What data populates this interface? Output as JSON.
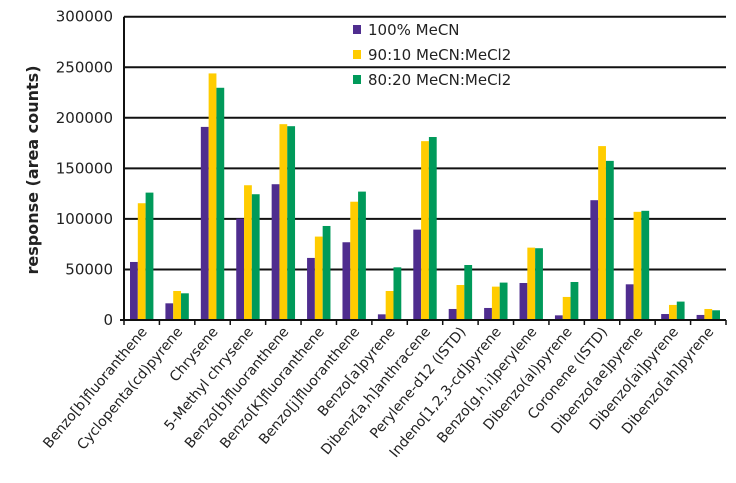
{
  "chart_data": {
    "type": "bar",
    "title": "",
    "xlabel": "",
    "ylabel": "response (area counts)",
    "ylim": [
      0,
      300000
    ],
    "yticks": [
      0,
      50000,
      100000,
      150000,
      200000,
      250000,
      300000
    ],
    "grid": "horizontal",
    "legend_position": "top-center",
    "categories": [
      "Benzo[b]fluoranthene",
      "Cyclopenta(cd)pyrene",
      "Chrysene",
      "5-Methyl chrysene",
      "Benzo[b]fluoranthene",
      "Benzo[K]fluoranthene",
      "Benzo[j]fluoranthene",
      "Benzo[a]pyrene",
      "Dibenz[a,h]anthracene",
      "Perylene-d12 (ISTD)",
      "Indeno[1,2,3-cd]pyrene",
      "Benzo[g,h,i]perylene",
      "Dibenzo(al)pyrene",
      "Coronene (ISTD)",
      "Dibenzo[ae]pyrene",
      "Dibenzo[ai]pyrene",
      "Dibenzo[ah]pyrene"
    ],
    "series": [
      {
        "name": "100% MeCN",
        "color": "#4f2d8f",
        "values": [
          57400,
          16500,
          191000,
          100300,
          134300,
          61400,
          76900,
          5600,
          89400,
          10900,
          11900,
          36600,
          4600,
          118500,
          35300,
          5900,
          5000
        ]
      },
      {
        "name": "90:10 MeCN:MeCl2",
        "color": "#ffcc00",
        "values": [
          115500,
          28700,
          243900,
          133300,
          193700,
          82500,
          117000,
          28700,
          176900,
          34600,
          33000,
          71600,
          22800,
          172000,
          107000,
          14900,
          10900
        ]
      },
      {
        "name": "80:20 MeCN:MeCl2",
        "color": "#009a5a",
        "values": [
          126000,
          26400,
          229700,
          124400,
          191700,
          93000,
          127000,
          52100,
          181000,
          54400,
          37000,
          71000,
          37600,
          157400,
          108000,
          18200,
          9600
        ]
      }
    ]
  }
}
